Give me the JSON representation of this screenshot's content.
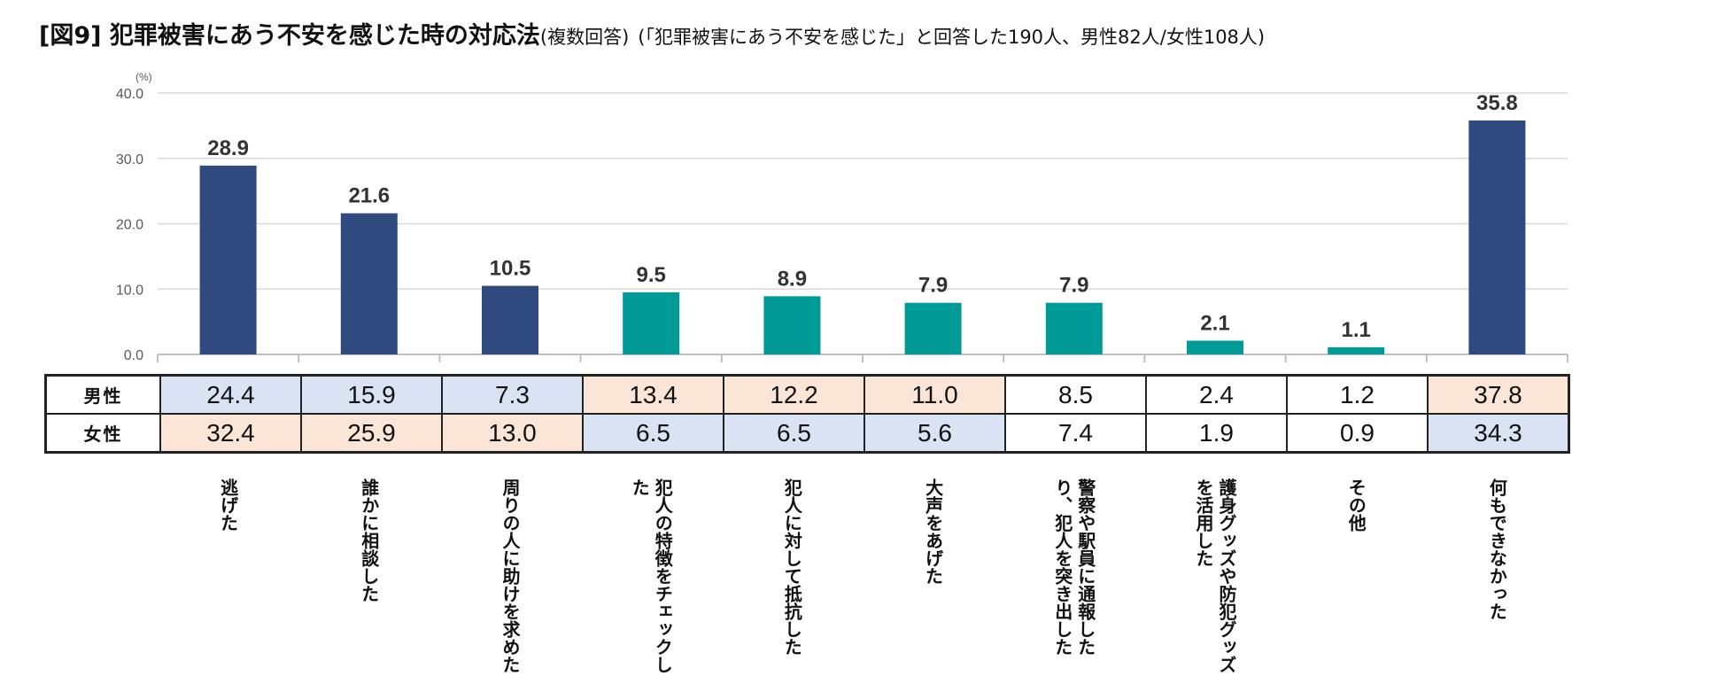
{
  "header": {
    "title": "[図9] 犯罪被害にあう不安を感じた時の対応法",
    "subtitle": "(複数回答)",
    "note": "(「犯罪被害にあう不安を感じた」と回答した190人、男性82人/女性108人)"
  },
  "chart_data": {
    "type": "bar",
    "title": "[図9] 犯罪被害にあう不安を感じた時の対応法",
    "ylabel": "(%)",
    "ylim": [
      0,
      40
    ],
    "yticks": [
      "0.0",
      "10.0",
      "20.0",
      "30.0",
      "40.0"
    ],
    "categories": [
      "逃げた",
      "誰かに相談した",
      "周りの人に助けを求めた",
      "犯人の特徴をチェックした",
      "犯人に対して抵抗した",
      "大声をあげた",
      "警察や駅員に通報したり、犯人を突き出した",
      "護身グッズや防犯グッズを活用した",
      "その他",
      "何もできなかった"
    ],
    "values": [
      28.9,
      21.6,
      10.5,
      9.5,
      8.9,
      7.9,
      7.9,
      2.1,
      1.1,
      35.8
    ],
    "value_labels": [
      "28.9",
      "21.6",
      "10.5",
      "9.5",
      "8.9",
      "7.9",
      "7.9",
      "2.1",
      "1.1",
      "35.8"
    ],
    "bar_colors": [
      "#2e4a7f",
      "#2e4a7f",
      "#2e4a7f",
      "#009b96",
      "#009b96",
      "#009b96",
      "#009b96",
      "#009b96",
      "#009b96",
      "#2e4a7f"
    ],
    "grid": true
  },
  "table": {
    "rows": [
      {
        "label": "男性",
        "values": [
          "24.4",
          "15.9",
          "7.3",
          "13.4",
          "12.2",
          "11.0",
          "8.5",
          "2.4",
          "1.2",
          "37.8"
        ],
        "shade": [
          "lo",
          "lo",
          "lo",
          "hi",
          "hi",
          "hi",
          "",
          "",
          "",
          "hi"
        ]
      },
      {
        "label": "女性",
        "values": [
          "32.4",
          "25.9",
          "13.0",
          "6.5",
          "6.5",
          "5.6",
          "7.4",
          "1.9",
          "0.9",
          "34.3"
        ],
        "shade": [
          "hi",
          "hi",
          "hi",
          "lo",
          "lo",
          "lo",
          "",
          "",
          "",
          "lo"
        ]
      }
    ]
  }
}
